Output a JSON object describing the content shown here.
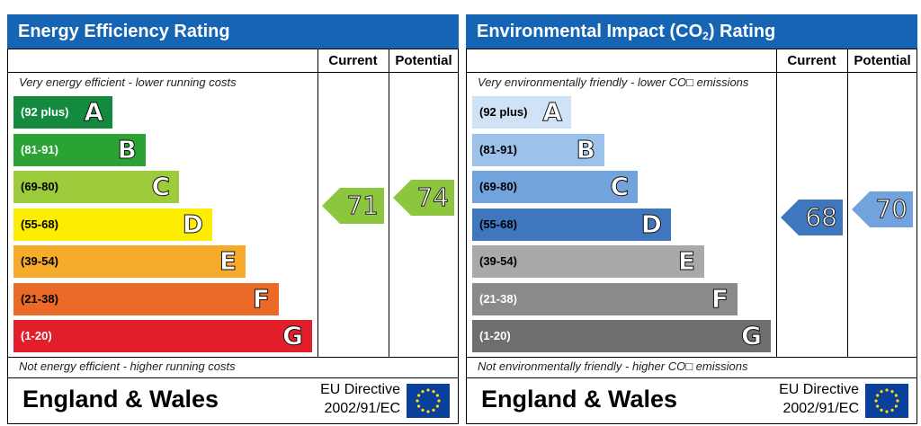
{
  "panels": [
    {
      "title": "Energy Efficiency Rating",
      "title_sub": "",
      "title_suffix": "",
      "col_current": "Current",
      "col_potential": "Potential",
      "top_note": "Very energy efficient - lower running costs",
      "bottom_note": "Not energy efficient - higher running costs",
      "footer_country": "England & Wales",
      "footer_directive_1": "EU Directive",
      "footer_directive_2": "2002/91/EC",
      "eu_flag_icon": "eu-flag-icon"
    },
    {
      "title": "Environmental Impact (CO",
      "title_sub": "2",
      "title_suffix": ") Rating",
      "col_current": "Current",
      "col_potential": "Potential",
      "top_note": "Very environmentally friendly - lower CO□  emissions",
      "bottom_note": "Not environmentally friendly - higher CO□ emissions",
      "footer_country": "England & Wales",
      "footer_directive_1": "EU Directive",
      "footer_directive_2": "2002/91/EC",
      "eu_flag_icon": "eu-flag-icon"
    }
  ],
  "chart_data": [
    {
      "type": "bar",
      "title": "Energy Efficiency Rating",
      "bands": [
        {
          "range": "(92 plus)",
          "letter": "A",
          "color": "#138a3e",
          "text_color": "#ffffff"
        },
        {
          "range": "(81-91)",
          "letter": "B",
          "color": "#2aa334",
          "text_color": "#ffffff"
        },
        {
          "range": "(69-80)",
          "letter": "C",
          "color": "#9ccb3b",
          "text_color": "#000000"
        },
        {
          "range": "(55-68)",
          "letter": "D",
          "color": "#fded00",
          "text_color": "#000000"
        },
        {
          "range": "(39-54)",
          "letter": "E",
          "color": "#f6ab2a",
          "text_color": "#000000"
        },
        {
          "range": "(21-38)",
          "letter": "F",
          "color": "#ec6a28",
          "text_color": "#000000"
        },
        {
          "range": "(1-20)",
          "letter": "G",
          "color": "#e21e2a",
          "text_color": "#ffffff"
        }
      ],
      "current": {
        "value": 71,
        "band": "C",
        "color": "#8cc63f"
      },
      "potential": {
        "value": 74,
        "band": "C",
        "color": "#8cc63f"
      }
    },
    {
      "type": "bar",
      "title": "Environmental Impact (CO2) Rating",
      "bands": [
        {
          "range": "(92 plus)",
          "letter": "A",
          "color": "#cfe2f6",
          "text_color": "#000000"
        },
        {
          "range": "(81-91)",
          "letter": "B",
          "color": "#9cc2ec",
          "text_color": "#000000"
        },
        {
          "range": "(69-80)",
          "letter": "C",
          "color": "#72a3dc",
          "text_color": "#000000"
        },
        {
          "range": "(55-68)",
          "letter": "D",
          "color": "#3f77bf",
          "text_color": "#000000"
        },
        {
          "range": "(39-54)",
          "letter": "E",
          "color": "#a9a9a9",
          "text_color": "#000000"
        },
        {
          "range": "(21-38)",
          "letter": "F",
          "color": "#8a8a8a",
          "text_color": "#ffffff"
        },
        {
          "range": "(1-20)",
          "letter": "G",
          "color": "#6e6e6e",
          "text_color": "#ffffff"
        }
      ],
      "current": {
        "value": 68,
        "band": "D",
        "color": "#3f77bf"
      },
      "potential": {
        "value": 70,
        "band": "C",
        "color": "#72a3dc"
      }
    }
  ]
}
